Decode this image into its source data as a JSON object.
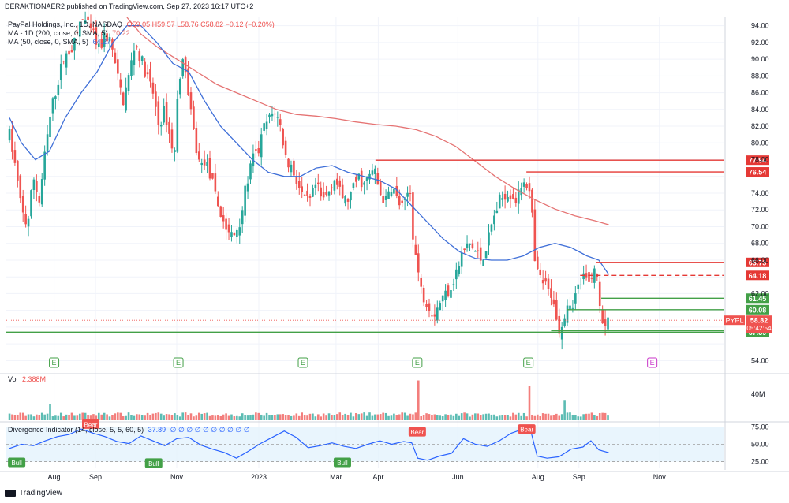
{
  "header": {
    "publisher": "DERAKTIONAER2 published on TradingView.com, Sep 27, 2023 16:17 UTC+2"
  },
  "legend": {
    "main": {
      "name": "PayPal Holdings, Inc., 1D, NASDAQ",
      "ohlc": "O59.05 H59.57 L58.76 C58.82 −0.12 (−0.20%)"
    },
    "ma200": {
      "name": "MA - 1D (200, close, 0, SMA, 5)",
      "value": "70.22"
    },
    "ma50": {
      "name": "MA (50, close, 0, SMA, 5)",
      "value": "64.27"
    },
    "vol": {
      "name": "Vol",
      "value": "2.388M"
    },
    "div": {
      "name": "Divergence Indicator (14, close, 5, 5, 60, 5)",
      "value": "37.89",
      "dots": "∅ ∅ ∅ ∅ ∅ ∅ ∅ ∅ ∅ ∅"
    }
  },
  "footer": {
    "brand": "TradingView"
  },
  "colors": {
    "up": "#26a69a",
    "down": "#ef5350",
    "ma200": "#e57373",
    "ma50": "#3f6fd8",
    "hline_red": "#e53935",
    "hline_green": "#43a047",
    "osc": "#2962ff",
    "bull": "#43a047",
    "bear": "#ef5350",
    "earn": "#43a047",
    "earn_future": "#c935c9"
  },
  "chart_data": {
    "type": "candlestick",
    "symbol": "PYPL",
    "last_price": "58.82",
    "countdown": "05:42:54",
    "ylim": [
      53,
      95
    ],
    "y_ticks": [
      "94.00",
      "92.00",
      "90.00",
      "88.00",
      "86.00",
      "84.00",
      "82.00",
      "80.00",
      "78.00",
      "74.00",
      "72.00",
      "70.00",
      "68.00",
      "66.00",
      "62.00",
      "54.00"
    ],
    "x_ticks": [
      {
        "label": "Aug",
        "x": 0.12
      },
      {
        "label": "Sep",
        "x": 1.16
      },
      {
        "label": "Nov",
        "x": 3.2
      },
      {
        "label": "2023",
        "x": 5.26
      },
      {
        "label": "Mar",
        "x": 7.2
      },
      {
        "label": "Apr",
        "x": 8.26
      },
      {
        "label": "Jun",
        "x": 10.26
      },
      {
        "label": "Aug",
        "x": 12.27
      },
      {
        "label": "Sep",
        "x": 13.3
      },
      {
        "label": "Nov",
        "x": 15.32
      }
    ],
    "x_range": [
      -1.08,
      16.95
    ],
    "price_path": [
      [
        -1.0,
        81
      ],
      [
        -0.85,
        77
      ],
      [
        -0.7,
        72
      ],
      [
        -0.55,
        70
      ],
      [
        -0.4,
        76
      ],
      [
        -0.25,
        73
      ],
      [
        -0.1,
        79
      ],
      [
        0.05,
        84
      ],
      [
        0.2,
        87
      ],
      [
        0.35,
        90
      ],
      [
        0.5,
        91
      ],
      [
        0.65,
        92
      ],
      [
        0.8,
        95
      ],
      [
        0.95,
        94
      ],
      [
        1.1,
        93
      ],
      [
        1.25,
        91
      ],
      [
        1.4,
        93
      ],
      [
        1.55,
        92
      ],
      [
        1.7,
        88
      ],
      [
        1.85,
        85
      ],
      [
        2.0,
        88
      ],
      [
        2.15,
        92
      ],
      [
        2.3,
        90
      ],
      [
        2.45,
        88
      ],
      [
        2.6,
        86
      ],
      [
        2.75,
        82
      ],
      [
        2.9,
        84
      ],
      [
        3.05,
        80
      ],
      [
        3.15,
        79
      ],
      [
        3.25,
        88
      ],
      [
        3.4,
        90
      ],
      [
        3.5,
        85
      ],
      [
        3.6,
        82
      ],
      [
        3.7,
        79
      ],
      [
        3.8,
        77
      ],
      [
        3.9,
        78
      ],
      [
        4.05,
        76
      ],
      [
        4.2,
        73
      ],
      [
        4.35,
        71
      ],
      [
        4.5,
        69
      ],
      [
        4.65,
        69
      ],
      [
        4.8,
        71
      ],
      [
        4.95,
        75
      ],
      [
        5.1,
        78
      ],
      [
        5.25,
        79
      ],
      [
        5.4,
        82
      ],
      [
        5.55,
        83
      ],
      [
        5.65,
        84
      ],
      [
        5.8,
        82
      ],
      [
        5.95,
        78
      ],
      [
        6.1,
        77
      ],
      [
        6.25,
        75
      ],
      [
        6.4,
        73
      ],
      [
        6.55,
        73
      ],
      [
        6.7,
        75
      ],
      [
        6.85,
        73
      ],
      [
        7.0,
        74
      ],
      [
        7.15,
        76
      ],
      [
        7.3,
        74
      ],
      [
        7.45,
        73
      ],
      [
        7.6,
        74
      ],
      [
        7.75,
        76
      ],
      [
        7.9,
        75
      ],
      [
        8.05,
        76
      ],
      [
        8.15,
        77
      ],
      [
        8.3,
        74
      ],
      [
        8.45,
        73
      ],
      [
        8.6,
        75
      ],
      [
        8.75,
        73
      ],
      [
        8.9,
        72
      ],
      [
        9.05,
        75
      ],
      [
        9.15,
        68
      ],
      [
        9.25,
        65
      ],
      [
        9.35,
        62
      ],
      [
        9.5,
        61
      ],
      [
        9.65,
        59.5
      ],
      [
        9.8,
        61
      ],
      [
        9.95,
        62
      ],
      [
        10.1,
        63
      ],
      [
        10.25,
        65
      ],
      [
        10.4,
        67
      ],
      [
        10.55,
        68
      ],
      [
        10.7,
        67
      ],
      [
        10.85,
        66
      ],
      [
        11.0,
        68
      ],
      [
        11.15,
        71
      ],
      [
        11.3,
        73
      ],
      [
        11.45,
        74
      ],
      [
        11.6,
        74
      ],
      [
        11.75,
        73
      ],
      [
        11.85,
        75
      ],
      [
        11.95,
        76
      ],
      [
        12.1,
        73
      ],
      [
        12.2,
        65
      ],
      [
        12.3,
        64
      ],
      [
        12.45,
        63
      ],
      [
        12.55,
        62
      ],
      [
        12.65,
        62
      ],
      [
        12.75,
        58
      ],
      [
        12.85,
        58
      ],
      [
        13.0,
        61
      ],
      [
        13.15,
        61
      ],
      [
        13.3,
        63
      ],
      [
        13.45,
        64
      ],
      [
        13.55,
        63
      ],
      [
        13.65,
        65
      ],
      [
        13.75,
        64
      ],
      [
        13.85,
        60
      ],
      [
        13.95,
        58
      ],
      [
        14.05,
        59
      ]
    ],
    "ma200_path": [
      [
        1.95,
        95
      ],
      [
        2.3,
        93
      ],
      [
        2.7,
        91.5
      ],
      [
        3.2,
        90
      ],
      [
        3.7,
        88.5
      ],
      [
        4.2,
        87
      ],
      [
        4.7,
        86
      ],
      [
        5.2,
        85
      ],
      [
        5.7,
        84
      ],
      [
        6.2,
        83.4
      ],
      [
        6.7,
        83.2
      ],
      [
        7.2,
        82.9
      ],
      [
        7.7,
        82.5
      ],
      [
        8.2,
        82.2
      ],
      [
        8.7,
        82
      ],
      [
        9.2,
        81.6
      ],
      [
        9.7,
        80.8
      ],
      [
        10.2,
        79.6
      ],
      [
        10.7,
        77.8
      ],
      [
        11.2,
        76
      ],
      [
        11.7,
        74.5
      ],
      [
        12.2,
        73.2
      ],
      [
        12.7,
        72.1
      ],
      [
        13.2,
        71.3
      ],
      [
        13.7,
        70.7
      ],
      [
        14.05,
        70.22
      ]
    ],
    "ma50_path": [
      [
        -1.0,
        83
      ],
      [
        -0.7,
        80
      ],
      [
        -0.35,
        78
      ],
      [
        0.0,
        79
      ],
      [
        0.4,
        83
      ],
      [
        0.8,
        86
      ],
      [
        1.2,
        88.5
      ],
      [
        1.6,
        92
      ],
      [
        1.95,
        94
      ],
      [
        2.3,
        94
      ],
      [
        2.7,
        92
      ],
      [
        3.1,
        89.5
      ],
      [
        3.5,
        88.5
      ],
      [
        3.9,
        85
      ],
      [
        4.3,
        82
      ],
      [
        4.7,
        80
      ],
      [
        5.1,
        78
      ],
      [
        5.5,
        76.5
      ],
      [
        5.9,
        76
      ],
      [
        6.3,
        76
      ],
      [
        6.7,
        77
      ],
      [
        7.1,
        77.3
      ],
      [
        7.5,
        76.5
      ],
      [
        7.9,
        76
      ],
      [
        8.3,
        75.5
      ],
      [
        8.7,
        74.5
      ],
      [
        9.1,
        72.5
      ],
      [
        9.5,
        70.5
      ],
      [
        9.9,
        68.5
      ],
      [
        10.3,
        67
      ],
      [
        10.7,
        66.2
      ],
      [
        11.1,
        66
      ],
      [
        11.5,
        66
      ],
      [
        11.9,
        66.5
      ],
      [
        12.3,
        67.5
      ],
      [
        12.7,
        68
      ],
      [
        13.1,
        67.5
      ],
      [
        13.5,
        66.5
      ],
      [
        13.8,
        66
      ],
      [
        14.05,
        64.27
      ]
    ],
    "hlines": [
      {
        "price": 77.94,
        "label": "77.94",
        "from": 8.19,
        "color": "red",
        "dash": false
      },
      {
        "price": 76.54,
        "label": "76.54",
        "from": 11.98,
        "color": "red",
        "dash": false
      },
      {
        "price": 65.73,
        "label": "65.73",
        "from": 13.74,
        "color": "red",
        "dash": false
      },
      {
        "price": 64.18,
        "label": "64.18",
        "from": 13.33,
        "color": "red",
        "dash": true
      },
      {
        "price": 61.45,
        "label": "61.45",
        "from": 13.86,
        "color": "green",
        "dash": false
      },
      {
        "price": 60.08,
        "label": "60.08",
        "from": 13.0,
        "color": "green",
        "dash": false
      },
      {
        "price": 57.58,
        "label": "57.58",
        "from": 12.6,
        "color": "green",
        "dash": false
      },
      {
        "price": 57.39,
        "label": "57.39",
        "from": -1.08,
        "color": "green",
        "dash": false
      }
    ],
    "earnings": [
      {
        "label": "E",
        "x": 0.12,
        "future": false
      },
      {
        "label": "E",
        "x": 3.24,
        "future": false
      },
      {
        "label": "E",
        "x": 6.37,
        "future": false
      },
      {
        "label": "E",
        "x": 9.24,
        "future": false
      },
      {
        "label": "E",
        "x": 12.03,
        "future": false
      },
      {
        "label": "E",
        "x": 15.14,
        "future": true
      }
    ],
    "volume": {
      "label": "40M",
      "spikes": [
        [
          0.0,
          10
        ],
        [
          1.35,
          4.5
        ],
        [
          3.42,
          4.8
        ],
        [
          9.24,
          24.5
        ],
        [
          12.07,
          21.3
        ],
        [
          12.97,
          12.5
        ]
      ]
    },
    "oscillator": {
      "ylim": [
        20,
        80
      ],
      "levels": [
        75,
        50,
        25
      ],
      "level_labels": [
        "75.00",
        "50.00",
        "25.00"
      ],
      "path": [
        [
          -1.0,
          44
        ],
        [
          -0.7,
          50
        ],
        [
          -0.4,
          48
        ],
        [
          -0.1,
          55
        ],
        [
          0.2,
          61
        ],
        [
          0.5,
          64
        ],
        [
          0.8,
          72
        ],
        [
          1.1,
          66
        ],
        [
          1.4,
          61
        ],
        [
          1.7,
          54
        ],
        [
          2.0,
          51
        ],
        [
          2.3,
          62
        ],
        [
          2.6,
          55
        ],
        [
          2.9,
          48
        ],
        [
          3.2,
          58
        ],
        [
          3.5,
          60
        ],
        [
          3.8,
          49
        ],
        [
          4.1,
          43
        ],
        [
          4.4,
          38
        ],
        [
          4.7,
          30
        ],
        [
          5.0,
          40
        ],
        [
          5.3,
          51
        ],
        [
          5.6,
          60
        ],
        [
          5.9,
          69
        ],
        [
          6.2,
          60
        ],
        [
          6.5,
          45
        ],
        [
          6.8,
          48
        ],
        [
          7.1,
          52
        ],
        [
          7.4,
          47
        ],
        [
          7.7,
          44
        ],
        [
          8.0,
          50
        ],
        [
          8.3,
          55
        ],
        [
          8.6,
          50
        ],
        [
          8.9,
          54
        ],
        [
          9.1,
          52
        ],
        [
          9.25,
          30
        ],
        [
          9.5,
          27
        ],
        [
          9.8,
          33
        ],
        [
          10.1,
          37
        ],
        [
          10.4,
          58
        ],
        [
          10.7,
          50
        ],
        [
          11.0,
          47
        ],
        [
          11.3,
          55
        ],
        [
          11.6,
          66
        ],
        [
          11.9,
          72
        ],
        [
          12.1,
          67
        ],
        [
          12.25,
          33
        ],
        [
          12.5,
          30
        ],
        [
          12.8,
          32
        ],
        [
          13.1,
          43
        ],
        [
          13.4,
          46
        ],
        [
          13.6,
          55
        ],
        [
          13.8,
          42
        ],
        [
          14.05,
          37.89
        ]
      ],
      "signals": [
        {
          "label": "Bear",
          "x": 1.04,
          "value": 79,
          "type": "bear"
        },
        {
          "label": "Bull",
          "x": -0.82,
          "value": 24,
          "type": "bull"
        },
        {
          "label": "Bull",
          "x": 2.62,
          "value": 23,
          "type": "bull"
        },
        {
          "label": "Bull",
          "x": 7.36,
          "value": 24,
          "type": "bull"
        },
        {
          "label": "Bear",
          "x": 9.24,
          "value": 68,
          "type": "bear"
        },
        {
          "label": "Bear",
          "x": 11.99,
          "value": 72,
          "type": "bear"
        }
      ]
    }
  }
}
